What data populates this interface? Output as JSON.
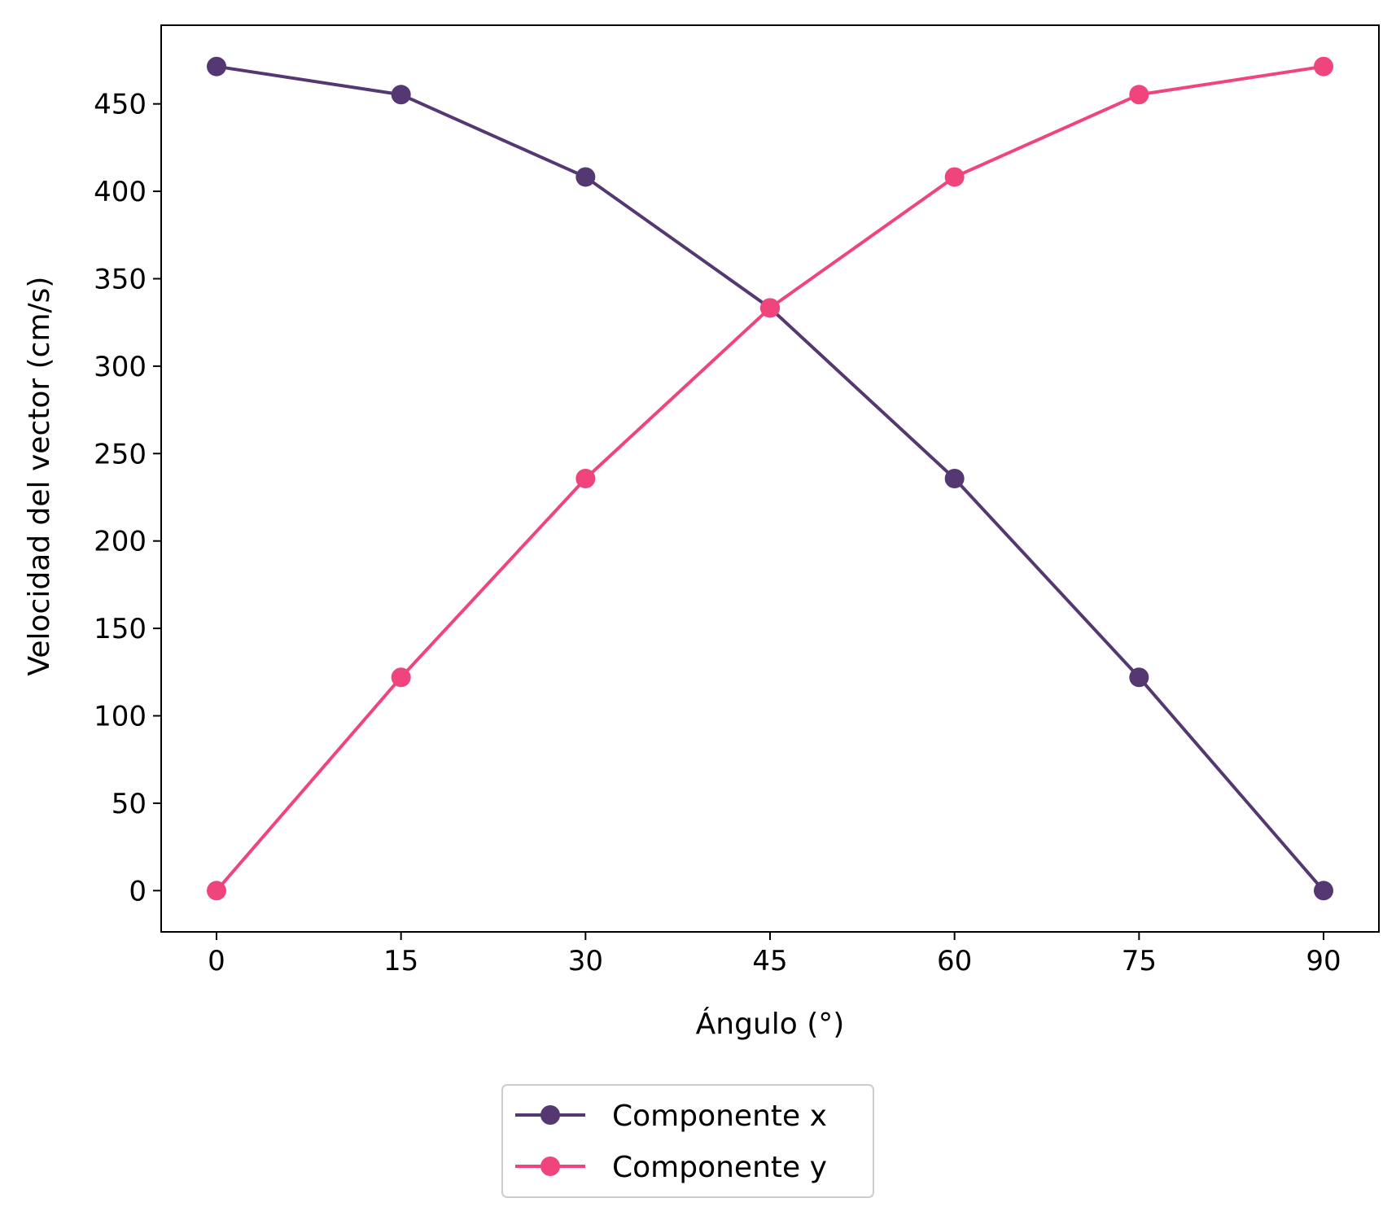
{
  "chart_data": {
    "type": "line",
    "xlabel": "Ángulo (°)",
    "ylabel": "Velocidad del vector (cm/s)",
    "x": [
      0,
      15,
      30,
      45,
      60,
      75,
      90
    ],
    "xticks": [
      "0",
      "15",
      "30",
      "45",
      "60",
      "75",
      "90"
    ],
    "yticks": [
      "0",
      "50",
      "100",
      "150",
      "200",
      "250",
      "300",
      "350",
      "400",
      "450"
    ],
    "xlim": [
      -4.5,
      94.5
    ],
    "ylim": [
      -23.6,
      495
    ],
    "grid": false,
    "legend_position": "bottom-center",
    "series": [
      {
        "name": "Componente x",
        "color": "#553772",
        "marker": "circle",
        "values": [
          471.4,
          455.3,
          408.2,
          333.3,
          235.7,
          122.0,
          0
        ]
      },
      {
        "name": "Componente y",
        "color": "#f0457c",
        "marker": "circle",
        "values": [
          0,
          122.0,
          235.7,
          333.3,
          408.2,
          455.3,
          471.4
        ]
      }
    ]
  }
}
